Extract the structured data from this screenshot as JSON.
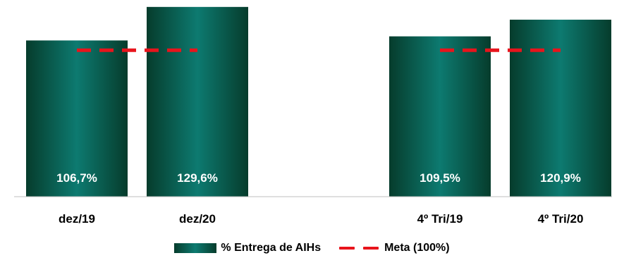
{
  "chart_data": {
    "type": "bar",
    "categories": [
      "dez/19",
      "dez/20",
      "4º Tri/19",
      "4º Tri/20"
    ],
    "series": [
      {
        "name": "% Entrega de AIHs",
        "values": [
          106.7,
          129.6,
          109.5,
          120.9
        ],
        "data_labels": [
          "106,7%",
          "129,6%",
          "109,5%",
          "120,9%"
        ]
      },
      {
        "name": "Meta (100%)",
        "type": "line",
        "dashed": true,
        "values": [
          100,
          100,
          100,
          100
        ]
      }
    ],
    "groups": [
      [
        "dez/19",
        "dez/20"
      ],
      [
        "4º Tri/19",
        "4º Tri/20"
      ]
    ],
    "ylim": [
      0,
      130
    ],
    "grid": false,
    "legend_position": "bottom",
    "colors": {
      "bar_dark": "#063c2c",
      "bar_light": "#0d7a70",
      "meta_line": "#e8141c"
    }
  },
  "legend": {
    "bar_label": "% Entrega de AIHs",
    "line_label": "Meta (100%)"
  }
}
